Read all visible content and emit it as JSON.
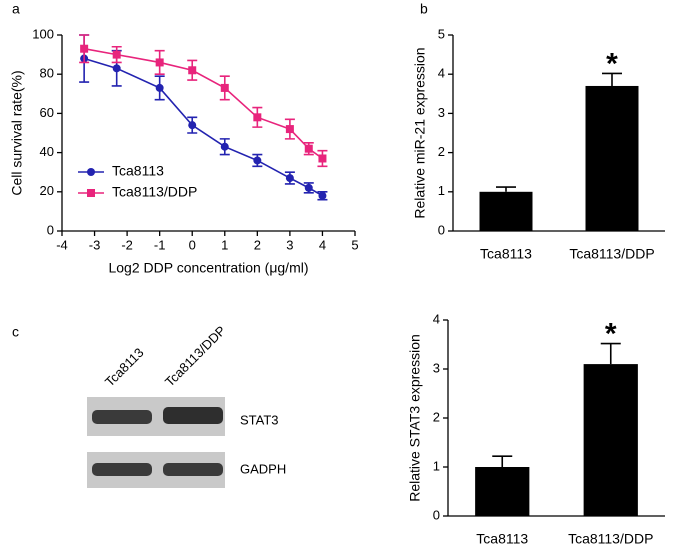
{
  "chart_data": [
    {
      "type": "line",
      "label": "a",
      "xlabel": "Log2 DDP concentration (μg/ml)",
      "ylabel": "Cell survival rate(%)",
      "x": [
        -3.32,
        -2.32,
        -1,
        0,
        1,
        2,
        3,
        3.58,
        4
      ],
      "series": [
        {
          "name": "Tca8113",
          "color": "#2323b0",
          "marker": "circle",
          "values": [
            88,
            83,
            73,
            54,
            43,
            36,
            27,
            22,
            18
          ],
          "errors": [
            12,
            9,
            6,
            4,
            4,
            3,
            3,
            2.5,
            2
          ]
        },
        {
          "name": "Tca8113/DDP",
          "color": "#e8247c",
          "marker": "square",
          "values": [
            93,
            90,
            86,
            82,
            73,
            58,
            52,
            42,
            37
          ],
          "errors": [
            7,
            4,
            6,
            5,
            6,
            5,
            5,
            3,
            4
          ]
        }
      ],
      "xlim": [
        -4,
        5
      ],
      "xticks": [
        -4,
        -3,
        -2,
        -1,
        0,
        1,
        2,
        3,
        4,
        5
      ],
      "ylim": [
        0,
        100
      ],
      "yticks": [
        0,
        20,
        40,
        60,
        80,
        100
      ]
    },
    {
      "type": "bar",
      "label": "b",
      "ylabel": "Relative miR-21 expression",
      "categories": [
        "Tca8113",
        "Tca8113/DDP"
      ],
      "values": [
        1.0,
        3.7
      ],
      "errors": [
        0.12,
        0.32
      ],
      "color": "#000000",
      "annotation": "*",
      "ylim": [
        0,
        5
      ],
      "yticks": [
        0,
        1,
        2,
        3,
        4,
        5
      ]
    },
    {
      "type": "bar",
      "ylabel": "Relative STAT3 expression",
      "categories": [
        "Tca8113",
        "Tca8113/DDP"
      ],
      "values": [
        1.0,
        3.1
      ],
      "errors": [
        0.22,
        0.42
      ],
      "color": "#000000",
      "annotation": "*",
      "ylim": [
        0,
        4
      ],
      "yticks": [
        0,
        1,
        2,
        3,
        4
      ]
    }
  ],
  "blot": {
    "label": "c",
    "lanes": [
      "Tca8113",
      "Tca8113/DDP"
    ],
    "bands": [
      "STAT3",
      "GADPH"
    ]
  }
}
